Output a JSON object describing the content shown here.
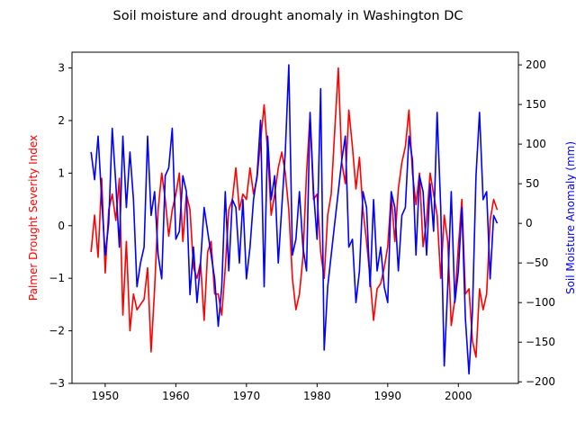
{
  "chart_data": {
    "type": "line",
    "title": "Soil moisture and drought anomaly in Washington DC",
    "xlabel": "",
    "xlim": [
      1945.3,
      2008.5
    ],
    "x_ticks": [
      1950,
      1960,
      1970,
      1980,
      1990,
      2000
    ],
    "axes": {
      "left": {
        "label": "Palmer Drought Severity Index",
        "color": "#ff0000",
        "ylim": [
          -3,
          3.3
        ],
        "ticks": [
          -3,
          -2,
          -1,
          0,
          1,
          2,
          3
        ]
      },
      "right": {
        "label": "Soil Moisture Anomaly (mm)",
        "color": "#0000ff",
        "ylim": [
          -202,
          216
        ],
        "ticks": [
          -200,
          -150,
          -100,
          -50,
          0,
          50,
          100,
          150,
          200
        ]
      }
    },
    "grid": false,
    "series": [
      {
        "name": "Palmer Drought Severity Index",
        "axis": "left",
        "color": "#ff0000",
        "x": [
          1948.0,
          1948.5,
          1949.0,
          1949.5,
          1950.0,
          1950.5,
          1951.0,
          1951.5,
          1952.0,
          1952.5,
          1953.0,
          1953.5,
          1954.0,
          1954.5,
          1955.0,
          1955.5,
          1956.0,
          1956.5,
          1957.0,
          1957.5,
          1958.0,
          1958.5,
          1959.0,
          1959.5,
          1960.0,
          1960.5,
          1961.0,
          1961.5,
          1962.0,
          1962.5,
          1963.0,
          1963.5,
          1964.0,
          1964.5,
          1965.0,
          1965.5,
          1966.0,
          1966.5,
          1967.0,
          1967.5,
          1968.0,
          1968.5,
          1969.0,
          1969.5,
          1970.0,
          1970.5,
          1971.0,
          1971.5,
          1972.0,
          1972.5,
          1973.0,
          1973.5,
          1974.0,
          1974.5,
          1975.0,
          1975.5,
          1976.0,
          1976.5,
          1977.0,
          1977.5,
          1978.0,
          1978.5,
          1979.0,
          1979.5,
          1980.0,
          1980.5,
          1981.0,
          1981.5,
          1982.0,
          1982.5,
          1983.0,
          1983.5,
          1984.0,
          1984.5,
          1985.0,
          1985.5,
          1986.0,
          1986.5,
          1987.0,
          1987.5,
          1988.0,
          1988.5,
          1989.0,
          1989.5,
          1990.0,
          1990.5,
          1991.0,
          1991.5,
          1992.0,
          1992.5,
          1993.0,
          1993.5,
          1994.0,
          1994.5,
          1995.0,
          1995.5,
          1996.0,
          1996.5,
          1997.0,
          1997.5,
          1998.0,
          1998.5,
          1999.0,
          1999.5,
          2000.0,
          2000.5,
          2001.0,
          2001.5,
          2002.0,
          2002.5,
          2003.0,
          2003.5,
          2004.0,
          2004.5,
          2005.0,
          2005.5
        ],
        "y": [
          -0.5,
          0.2,
          -0.6,
          0.9,
          -0.9,
          0.3,
          0.6,
          0.1,
          0.9,
          -1.7,
          -0.3,
          -2.0,
          -1.3,
          -1.6,
          -1.5,
          -1.4,
          -0.8,
          -2.4,
          -1.2,
          0.3,
          1.0,
          0.5,
          -0.2,
          0.3,
          0.6,
          1.0,
          -0.3,
          0.6,
          0.3,
          -0.8,
          -1.0,
          -0.7,
          -1.8,
          -0.5,
          -0.3,
          -1.3,
          -1.3,
          -1.7,
          -0.8,
          0.3,
          0.5,
          1.1,
          0.3,
          0.6,
          0.5,
          1.1,
          0.6,
          0.9,
          1.6,
          2.3,
          1.4,
          0.2,
          0.6,
          1.1,
          1.4,
          1.0,
          0.3,
          -1.0,
          -1.6,
          -1.3,
          -0.6,
          1.0,
          2.1,
          0.5,
          0.6,
          -0.5,
          -1.0,
          0.2,
          0.6,
          1.8,
          3.0,
          1.2,
          0.8,
          2.2,
          1.5,
          0.7,
          1.3,
          0.3,
          -0.3,
          -1.0,
          -1.8,
          -1.2,
          -1.1,
          -0.8,
          -0.4,
          0.6,
          -0.3,
          0.7,
          1.2,
          1.5,
          2.2,
          1.0,
          0.4,
          1.0,
          -0.4,
          0.1,
          1.0,
          0.6,
          0.2,
          -1.0,
          0.2,
          -0.3,
          -1.9,
          -1.4,
          -0.4,
          0.5,
          -1.3,
          -1.2,
          -2.2,
          -2.5,
          -1.2,
          -1.6,
          -1.3,
          0.1,
          0.5,
          0.3
        ]
      },
      {
        "name": "Soil Moisture Anomaly (mm)",
        "axis": "right",
        "color": "#0000ff",
        "x": [
          1948.0,
          1948.5,
          1949.0,
          1949.5,
          1950.0,
          1950.5,
          1951.0,
          1951.5,
          1952.0,
          1952.5,
          1953.0,
          1953.5,
          1954.0,
          1954.5,
          1955.0,
          1955.5,
          1956.0,
          1956.5,
          1957.0,
          1957.5,
          1958.0,
          1958.5,
          1959.0,
          1959.5,
          1960.0,
          1960.5,
          1961.0,
          1961.5,
          1962.0,
          1962.5,
          1963.0,
          1963.5,
          1964.0,
          1964.5,
          1965.0,
          1965.5,
          1966.0,
          1966.5,
          1967.0,
          1967.5,
          1968.0,
          1968.5,
          1969.0,
          1969.5,
          1970.0,
          1970.5,
          1971.0,
          1971.5,
          1972.0,
          1972.5,
          1973.0,
          1973.5,
          1974.0,
          1974.5,
          1975.0,
          1975.5,
          1976.0,
          1976.5,
          1977.0,
          1977.5,
          1978.0,
          1978.5,
          1979.0,
          1979.5,
          1980.0,
          1980.5,
          1981.0,
          1981.5,
          1982.0,
          1982.5,
          1983.0,
          1983.5,
          1984.0,
          1984.5,
          1985.0,
          1985.5,
          1986.0,
          1986.5,
          1987.0,
          1987.5,
          1988.0,
          1988.5,
          1989.0,
          1989.5,
          1990.0,
          1990.5,
          1991.0,
          1991.5,
          1992.0,
          1992.5,
          1993.0,
          1993.5,
          1994.0,
          1994.5,
          1995.0,
          1995.5,
          1996.0,
          1996.5,
          1997.0,
          1997.5,
          1998.0,
          1998.5,
          1999.0,
          1999.5,
          2000.0,
          2000.5,
          2001.0,
          2001.5,
          2002.0,
          2002.5,
          2003.0,
          2003.5,
          2004.0,
          2004.5,
          2005.0,
          2005.5
        ],
        "y": [
          90,
          55,
          110,
          30,
          -40,
          0,
          120,
          50,
          -30,
          110,
          20,
          90,
          30,
          -80,
          -50,
          -30,
          110,
          10,
          40,
          -40,
          -70,
          60,
          70,
          120,
          -20,
          -10,
          60,
          40,
          -90,
          -30,
          -100,
          -50,
          20,
          -10,
          -40,
          -70,
          -130,
          -80,
          40,
          -60,
          30,
          20,
          -50,
          30,
          -70,
          -30,
          30,
          60,
          130,
          -80,
          110,
          30,
          60,
          -50,
          20,
          90,
          200,
          -40,
          -20,
          40,
          -30,
          -60,
          140,
          40,
          -20,
          170,
          -160,
          -80,
          -40,
          0,
          40,
          80,
          110,
          -30,
          -20,
          -100,
          -60,
          40,
          20,
          -80,
          30,
          -60,
          -30,
          -80,
          -100,
          40,
          20,
          -60,
          10,
          20,
          110,
          80,
          -40,
          60,
          40,
          -40,
          50,
          -10,
          140,
          20,
          -180,
          -80,
          40,
          -100,
          -60,
          20,
          -120,
          -190,
          -110,
          60,
          140,
          30,
          40,
          -70,
          10,
          0
        ]
      }
    ]
  }
}
